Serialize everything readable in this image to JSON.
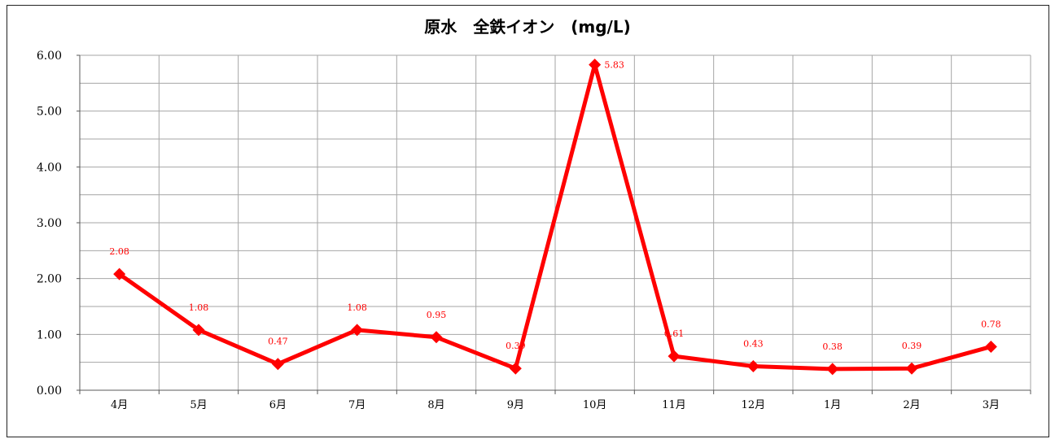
{
  "chart_data": {
    "type": "line",
    "title": "原水　全鉄イオン　(mg/L)",
    "categories": [
      "4月",
      "5月",
      "6月",
      "7月",
      "8月",
      "9月",
      "10月",
      "11月",
      "12月",
      "1月",
      "2月",
      "3月"
    ],
    "series": [
      {
        "values": [
          2.08,
          1.08,
          0.47,
          1.08,
          0.95,
          0.39,
          5.83,
          0.61,
          0.43,
          0.38,
          0.39,
          0.78
        ],
        "color": "#ff0000",
        "marker": "diamond"
      }
    ],
    "data_labels": [
      "2.08",
      "1.08",
      "0.47",
      "1.08",
      "0.95",
      "0.39",
      "5.83",
      "0.61",
      "0.43",
      "0.38",
      "0.39",
      "0.78"
    ],
    "ylim": [
      0,
      6
    ],
    "yticks": [
      "0.00",
      "1.00",
      "2.00",
      "3.00",
      "4.00",
      "5.00",
      "6.00"
    ],
    "xlabel": "",
    "ylabel": "",
    "grid": true,
    "legend": "none"
  }
}
